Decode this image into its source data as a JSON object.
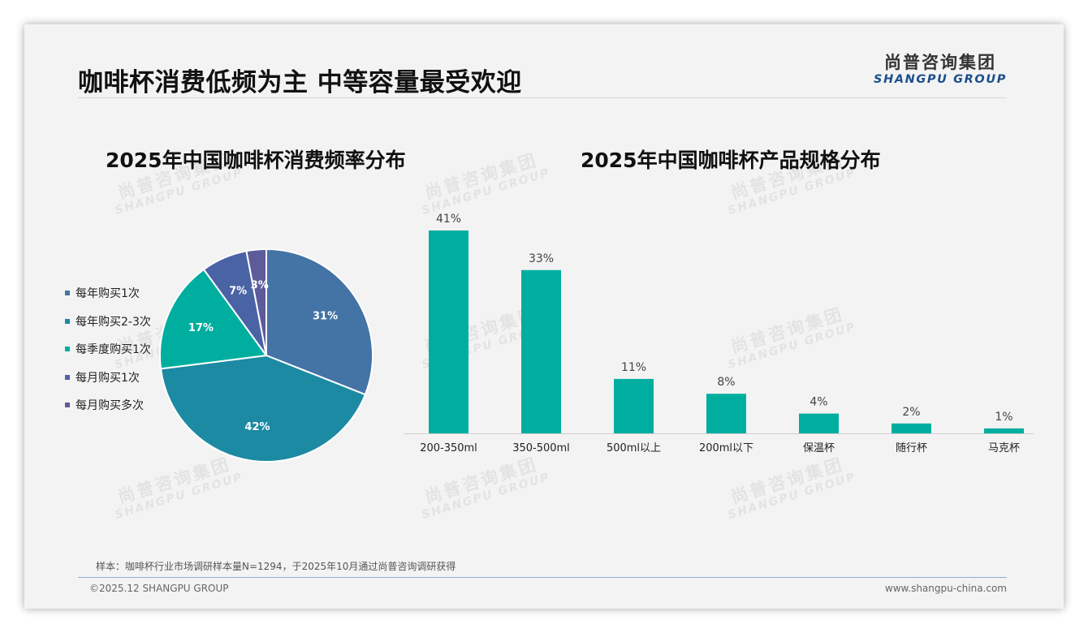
{
  "header": {
    "title": "咖啡杯消费低频为主 中等容量最受欢迎",
    "logo_cn": "尚普咨询集团",
    "logo_en": "SHANGPU GROUP"
  },
  "watermark": {
    "cn": "尚普咨询集团",
    "en": "SHANGPU GROUP"
  },
  "colors": {
    "pie": [
      "#4473a6",
      "#1c8aa3",
      "#00aea0",
      "#4a63a5",
      "#5d5b9a"
    ],
    "bar": "#00aea0"
  },
  "chart_data": [
    {
      "type": "pie",
      "title": "2025年中国咖啡杯消费频率分布",
      "categories": [
        "每年购买1次",
        "每年购买2-3次",
        "每季度购买1次",
        "每月购买1次",
        "每月购买多次"
      ],
      "values": [
        31,
        42,
        17,
        7,
        3
      ],
      "data_labels": [
        "31%",
        "42%",
        "17%",
        "7%",
        "3%"
      ],
      "legend_position": "left"
    },
    {
      "type": "bar",
      "title": "2025年中国咖啡杯产品规格分布",
      "categories": [
        "200-350ml",
        "350-500ml",
        "500ml以上",
        "200ml以下",
        "保温杯",
        "随行杯",
        "马克杯"
      ],
      "values": [
        41,
        33,
        11,
        8,
        4,
        2,
        1
      ],
      "data_labels": [
        "41%",
        "33%",
        "11%",
        "8%",
        "4%",
        "2%",
        "1%"
      ],
      "ylim": [
        0,
        41
      ],
      "grid": false
    }
  ],
  "footer": {
    "note": "样本：咖啡杯行业市场调研样本量N=1294，于2025年10月通过尚普咨询调研获得",
    "copyright": "©2025.12 SHANGPU GROUP",
    "website": "www.shangpu-china.com"
  }
}
